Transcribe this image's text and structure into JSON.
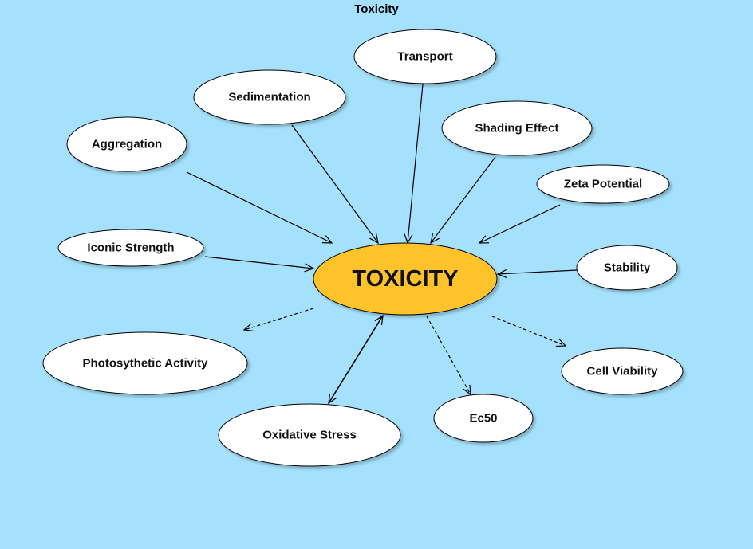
{
  "title": "Toxicity",
  "center": {
    "label": "TOXICITY",
    "fill": "#fec22b"
  },
  "colors": {
    "background": "#a5e1fc",
    "node_fill": "#ffffff",
    "edge": "#000000"
  },
  "nodes": {
    "transport": "Transport",
    "sedimentation": "Sedimentation",
    "shading_effect": "Shading Effect",
    "aggregation": "Aggregation",
    "zeta_potential": "Zeta Potential",
    "iconic_strength": "Iconic Strength",
    "stability": "Stability",
    "photosynthetic_activity": "Photosythetic Activity",
    "cell_viability": "Cell Viability",
    "ec50": "Ec50",
    "oxidative_stress": "Oxidative Stress"
  },
  "edge_types": {
    "inputs": "solid arrow into center",
    "outputs": "dashed arrow out of center",
    "bidirectional": "solid double-headed arrow"
  }
}
